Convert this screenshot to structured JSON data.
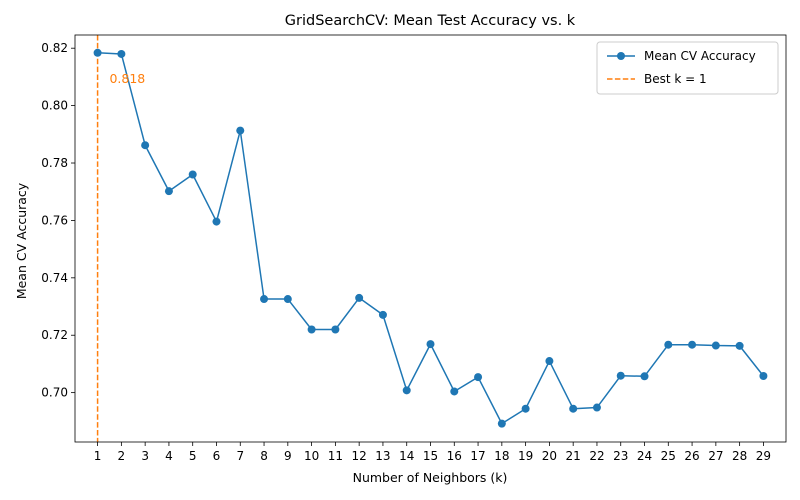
{
  "chart_data": {
    "type": "line",
    "title": "GridSearchCV: Mean Test Accuracy vs. k",
    "xlabel": "Number of Neighbors (k)",
    "ylabel": "Mean CV Accuracy",
    "x": [
      1,
      2,
      3,
      4,
      5,
      6,
      7,
      8,
      9,
      10,
      11,
      12,
      13,
      14,
      15,
      16,
      17,
      18,
      19,
      20,
      21,
      22,
      23,
      24,
      25,
      26,
      27,
      28,
      29
    ],
    "xlim": [
      0.05,
      29.95
    ],
    "ylim": [
      0.6828,
      0.8246
    ],
    "yticks": [
      0.7,
      0.72,
      0.74,
      0.76,
      0.78,
      0.8,
      0.82
    ],
    "ytick_labels": [
      "0.70",
      "0.72",
      "0.74",
      "0.76",
      "0.78",
      "0.80",
      "0.82"
    ],
    "series": [
      {
        "name": "Mean CV Accuracy",
        "color": "#1f77b4",
        "marker": "circle",
        "values": [
          0.8184,
          0.818,
          0.7862,
          0.7702,
          0.776,
          0.7596,
          0.7913,
          0.7326,
          0.7326,
          0.722,
          0.722,
          0.733,
          0.7271,
          0.7008,
          0.7169,
          0.7004,
          0.7054,
          0.6892,
          0.6944,
          0.711,
          0.6944,
          0.6948,
          0.7059,
          0.7057,
          0.7167,
          0.7167,
          0.7164,
          0.7163,
          0.7058
        ]
      }
    ],
    "reference_line": {
      "name": "Best k = 1",
      "orientation": "vertical",
      "x": 1,
      "color": "#ff7f0e",
      "style": "dashed"
    },
    "annotation": {
      "text": "0.818",
      "x": 1.5,
      "y": 0.8092,
      "color": "#ff7f0e"
    },
    "legend": {
      "placement": "top-right",
      "entries": [
        "Mean CV Accuracy",
        "Best k = 1"
      ]
    },
    "grid": false
  }
}
